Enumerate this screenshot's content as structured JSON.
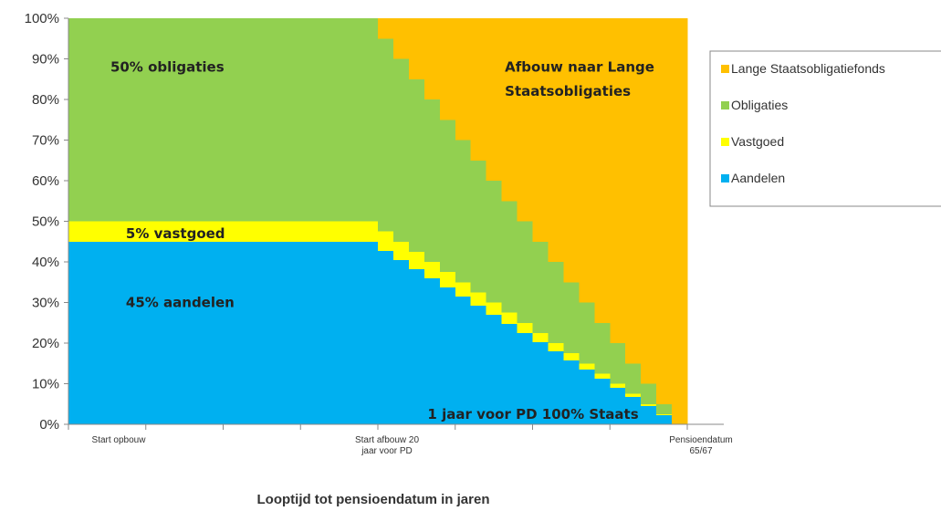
{
  "chart_data": {
    "type": "area",
    "stacked": true,
    "percent": true,
    "xlabel": "Looptijd tot pensioendatum in jaren",
    "ylabel": "",
    "ylim": [
      0,
      100
    ],
    "y_ticks": [
      "0%",
      "10%",
      "20%",
      "30%",
      "40%",
      "50%",
      "60%",
      "70%",
      "80%",
      "90%",
      "100%"
    ],
    "x_tick_labels": [
      {
        "label": "Start opbouw",
        "x": 0
      },
      {
        "label": "Start afbouw 20\njaar voor PD",
        "x": 20
      },
      {
        "label": "Pensioendatum\n65/67",
        "x": 40
      }
    ],
    "x_minor_ticks": [
      0,
      5,
      10,
      15,
      20,
      25,
      30,
      35,
      40
    ],
    "x_range": [
      0,
      40
    ],
    "legend_position": "right",
    "series": [
      {
        "name": "Aandelen",
        "color": "#00b0f0"
      },
      {
        "name": "Vastgoed",
        "color": "#ffff00"
      },
      {
        "name": "Obligaties",
        "color": "#92d050"
      },
      {
        "name": "Lange Staatsobligatiefonds",
        "color": "#ffc000"
      }
    ],
    "legend_order": [
      "Lange Staatsobligatiefonds",
      "Obligaties",
      "Vastgoed",
      "Aandelen"
    ],
    "steps": [
      {
        "x0": 0,
        "x1": 20,
        "aandelen": 45,
        "vastgoed": 5,
        "obligaties": 50,
        "staats": 0
      },
      {
        "x0": 20,
        "x1": 21,
        "aandelen": 42.75,
        "vastgoed": 4.75,
        "obligaties": 47.5,
        "staats": 5
      },
      {
        "x0": 21,
        "x1": 22,
        "aandelen": 40.5,
        "vastgoed": 4.5,
        "obligaties": 45,
        "staats": 10
      },
      {
        "x0": 22,
        "x1": 23,
        "aandelen": 38.25,
        "vastgoed": 4.25,
        "obligaties": 42.5,
        "staats": 15
      },
      {
        "x0": 23,
        "x1": 24,
        "aandelen": 36,
        "vastgoed": 4,
        "obligaties": 40,
        "staats": 20
      },
      {
        "x0": 24,
        "x1": 25,
        "aandelen": 33.75,
        "vastgoed": 3.75,
        "obligaties": 37.5,
        "staats": 25
      },
      {
        "x0": 25,
        "x1": 26,
        "aandelen": 31.5,
        "vastgoed": 3.5,
        "obligaties": 35,
        "staats": 30
      },
      {
        "x0": 26,
        "x1": 27,
        "aandelen": 29.25,
        "vastgoed": 3.25,
        "obligaties": 32.5,
        "staats": 35
      },
      {
        "x0": 27,
        "x1": 28,
        "aandelen": 27,
        "vastgoed": 3,
        "obligaties": 30,
        "staats": 40
      },
      {
        "x0": 28,
        "x1": 29,
        "aandelen": 24.75,
        "vastgoed": 2.75,
        "obligaties": 27.5,
        "staats": 45
      },
      {
        "x0": 29,
        "x1": 30,
        "aandelen": 22.5,
        "vastgoed": 2.5,
        "obligaties": 25,
        "staats": 50
      },
      {
        "x0": 30,
        "x1": 31,
        "aandelen": 20.25,
        "vastgoed": 2.25,
        "obligaties": 22.5,
        "staats": 55
      },
      {
        "x0": 31,
        "x1": 32,
        "aandelen": 18,
        "vastgoed": 2,
        "obligaties": 20,
        "staats": 60
      },
      {
        "x0": 32,
        "x1": 33,
        "aandelen": 15.75,
        "vastgoed": 1.75,
        "obligaties": 17.5,
        "staats": 65
      },
      {
        "x0": 33,
        "x1": 34,
        "aandelen": 13.5,
        "vastgoed": 1.5,
        "obligaties": 15,
        "staats": 70
      },
      {
        "x0": 34,
        "x1": 35,
        "aandelen": 11.25,
        "vastgoed": 1.25,
        "obligaties": 12.5,
        "staats": 75
      },
      {
        "x0": 35,
        "x1": 36,
        "aandelen": 9,
        "vastgoed": 1,
        "obligaties": 10,
        "staats": 80
      },
      {
        "x0": 36,
        "x1": 37,
        "aandelen": 6.75,
        "vastgoed": 0.75,
        "obligaties": 7.5,
        "staats": 85
      },
      {
        "x0": 37,
        "x1": 38,
        "aandelen": 4.5,
        "vastgoed": 0.5,
        "obligaties": 5,
        "staats": 90
      },
      {
        "x0": 38,
        "x1": 39,
        "aandelen": 2.25,
        "vastgoed": 0.25,
        "obligaties": 2.5,
        "staats": 95
      },
      {
        "x0": 39,
        "x1": 40,
        "aandelen": 0,
        "vastgoed": 0,
        "obligaties": 0,
        "staats": 100
      }
    ],
    "annotations": [
      {
        "text": "50% obligaties",
        "x": 1,
        "y": 88
      },
      {
        "text": "Afbouw naar Lange",
        "x": 26.5,
        "y": 88
      },
      {
        "text": "Staatsobligaties",
        "x": 26.5,
        "y": 82
      },
      {
        "text": "5% vastgoed",
        "x": 2,
        "y": 47
      },
      {
        "text": "45% aandelen",
        "x": 2,
        "y": 30
      },
      {
        "text": "1 jaar voor PD 100% Staats",
        "x": 21.5,
        "y": 2.5
      }
    ]
  }
}
